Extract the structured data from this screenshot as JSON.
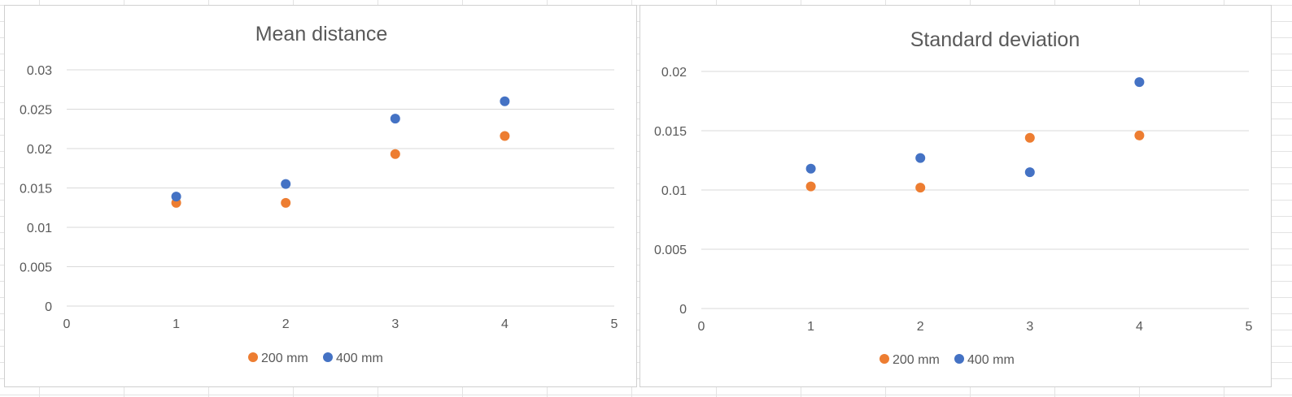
{
  "chart_data": [
    {
      "type": "scatter",
      "title": "Mean distance",
      "xlabel": "",
      "ylabel": "",
      "xlim": [
        0,
        5
      ],
      "ylim": [
        0,
        0.03
      ],
      "x_ticks": [
        0,
        1,
        2,
        3,
        4,
        5
      ],
      "y_ticks": [
        0,
        0.005,
        0.01,
        0.015,
        0.02,
        0.025,
        0.03
      ],
      "x_tick_labels": [
        "0",
        "1",
        "2",
        "3",
        "4",
        "5"
      ],
      "y_tick_labels": [
        "0",
        "0.005",
        "0.01",
        "0.015",
        "0.02",
        "0.025",
        "0.03"
      ],
      "grid": true,
      "legend": "bottom",
      "series": [
        {
          "name": "200 mm",
          "color": "#ED7D31",
          "points": [
            [
              1,
              0.0131
            ],
            [
              2,
              0.0131
            ],
            [
              3,
              0.0193
            ],
            [
              4,
              0.0216
            ]
          ]
        },
        {
          "name": "400 mm",
          "color": "#4472C4",
          "points": [
            [
              1,
              0.0139
            ],
            [
              2,
              0.0155
            ],
            [
              3,
              0.0238
            ],
            [
              4,
              0.026
            ]
          ]
        }
      ]
    },
    {
      "type": "scatter",
      "title": "Standard deviation",
      "xlabel": "",
      "ylabel": "",
      "xlim": [
        0,
        5
      ],
      "ylim": [
        0,
        0.02
      ],
      "x_ticks": [
        0,
        1,
        2,
        3,
        4,
        5
      ],
      "y_ticks": [
        0,
        0.005,
        0.01,
        0.015,
        0.02
      ],
      "x_tick_labels": [
        "0",
        "1",
        "2",
        "3",
        "4",
        "5"
      ],
      "y_tick_labels": [
        "0",
        "0.005",
        "0.01",
        "0.015",
        "0.02"
      ],
      "grid": true,
      "legend": "bottom",
      "series": [
        {
          "name": "200 mm",
          "color": "#ED7D31",
          "points": [
            [
              1,
              0.0103
            ],
            [
              2,
              0.0102
            ],
            [
              3,
              0.0144
            ],
            [
              4,
              0.0146
            ]
          ]
        },
        {
          "name": "400 mm",
          "color": "#4472C4",
          "points": [
            [
              1,
              0.0118
            ],
            [
              2,
              0.0127
            ],
            [
              3,
              0.0115
            ],
            [
              4,
              0.0191
            ]
          ]
        }
      ]
    }
  ]
}
